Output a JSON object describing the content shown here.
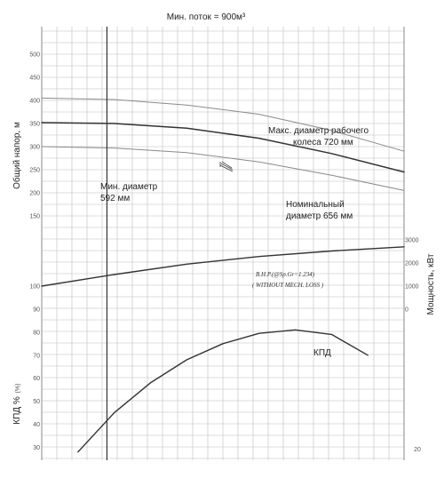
{
  "chart_data": {
    "type": "line",
    "title": "Мин. поток = 900м³",
    "head_axis": {
      "label": "Общий напор, м",
      "ticks": [
        "500",
        "450",
        "400",
        "350",
        "300",
        "250",
        "200",
        "150"
      ]
    },
    "efficiency_axis": {
      "label": "КПД %",
      "unit": "(%)",
      "ticks": [
        "100",
        "90",
        "80",
        "70",
        "60",
        "50",
        "40",
        "30"
      ]
    },
    "power_axis": {
      "label": "Мощность, кВт",
      "ticks": [
        "3000",
        "2000",
        "1000",
        "0"
      ],
      "extra_tick": "20"
    },
    "series": [
      {
        "name": "Макс. диаметр рабочего колеса 720 мм",
        "role": "head",
        "x": [
          0,
          1000,
          2000,
          3000,
          4000,
          5000
        ],
        "y": [
          405,
          402,
          390,
          370,
          335,
          290
        ]
      },
      {
        "name": "Номинальный диаметр 656 мм",
        "role": "head",
        "x": [
          0,
          1000,
          2000,
          3000,
          4000,
          5000
        ],
        "y": [
          352,
          350,
          340,
          318,
          285,
          245
        ]
      },
      {
        "name": "Мин. диаметр 592 мм",
        "role": "head",
        "x": [
          0,
          1000,
          2000,
          3000,
          4000,
          5000
        ],
        "y": [
          300,
          297,
          287,
          267,
          238,
          205
        ]
      },
      {
        "role": "power",
        "x": [
          0,
          1000,
          2000,
          3000,
          4000,
          5000
        ],
        "y": [
          1000,
          1500,
          1950,
          2280,
          2520,
          2700
        ]
      },
      {
        "name": "КПД",
        "role": "efficiency",
        "x": [
          500,
          1000,
          1500,
          2000,
          2500,
          3000,
          3500,
          4000,
          4500
        ],
        "y": [
          28,
          45,
          58,
          68,
          75,
          79.5,
          81,
          79,
          70
        ]
      }
    ],
    "annotations": {
      "bhp_note_line1": "B.H.P.(@Sp.Gr=1.234)",
      "bhp_note_line2": "( WITHOUT   MECH.  LOSS )",
      "max_label_line1": "Макс. диаметр рабочего",
      "max_label_line2": "колеса 720 мм",
      "nom_label_line1": "Номинальный",
      "nom_label_line2": "диаметр 656 мм",
      "min_label_line1": "Мин. диаметр",
      "min_label_line2": "592 мм",
      "eff_label": "КПД"
    },
    "x_range": [
      0,
      5000
    ],
    "min_flow_x": 900,
    "grid": true
  }
}
